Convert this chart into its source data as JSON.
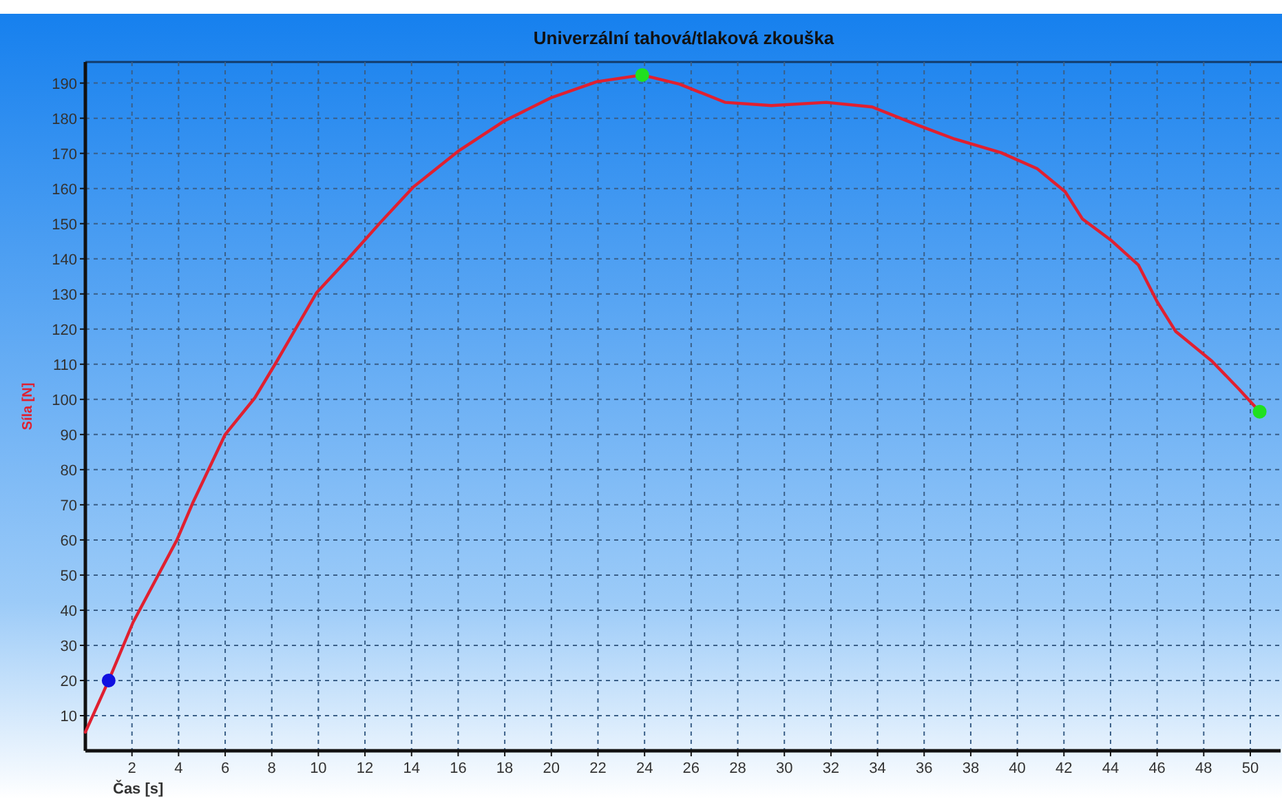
{
  "chart_data": {
    "type": "line",
    "title": "Univerzální tahová/tlaková zkouška",
    "xlabel": "Čas [s]",
    "ylabel": "Síla [N]",
    "xlim": [
      0,
      51.3
    ],
    "ylim": [
      0,
      196
    ],
    "xticks": [
      2,
      4,
      6,
      8,
      10,
      12,
      14,
      16,
      18,
      20,
      22,
      24,
      26,
      28,
      30,
      32,
      34,
      36,
      38,
      40,
      42,
      44,
      46,
      48,
      50
    ],
    "yticks": [
      10,
      20,
      30,
      40,
      50,
      60,
      70,
      80,
      90,
      100,
      110,
      120,
      130,
      140,
      150,
      160,
      170,
      180,
      190
    ],
    "grid": true,
    "line_style": "solid",
    "marker": "none",
    "series": [
      {
        "color": "#e02030",
        "x": [
          0,
          1,
          2.05,
          3.93,
          4.6,
          6,
          7.27,
          8.16,
          9.93,
          11.3,
          12.7,
          14.07,
          16.04,
          18,
          19.98,
          21.95,
          23.9,
          25.5,
          27.47,
          29.44,
          31.8,
          33.77,
          35.74,
          37.3,
          39.3,
          40.86,
          42.05,
          42.8,
          44,
          45.2,
          46,
          46.8,
          48.35,
          49.5,
          50.4
        ],
        "values": [
          5.3,
          20,
          36.6,
          60,
          70.4,
          90,
          100.4,
          110.2,
          130.4,
          140.2,
          150.6,
          160.4,
          170.8,
          179.3,
          185.8,
          190.4,
          192.3,
          189.7,
          184.5,
          183.6,
          184.5,
          183.2,
          178,
          174.1,
          170.2,
          165.6,
          159.1,
          151.3,
          145.4,
          138.2,
          127.8,
          119.3,
          110.9,
          103,
          96.5
        ]
      },
      {
        "type": "scatter",
        "marker": "circle",
        "colors": [
          "#1010e0",
          "#20e020",
          "#20e020"
        ],
        "x": [
          1,
          23.9,
          50.4
        ],
        "values": [
          20,
          192.3,
          96.5
        ]
      }
    ]
  }
}
